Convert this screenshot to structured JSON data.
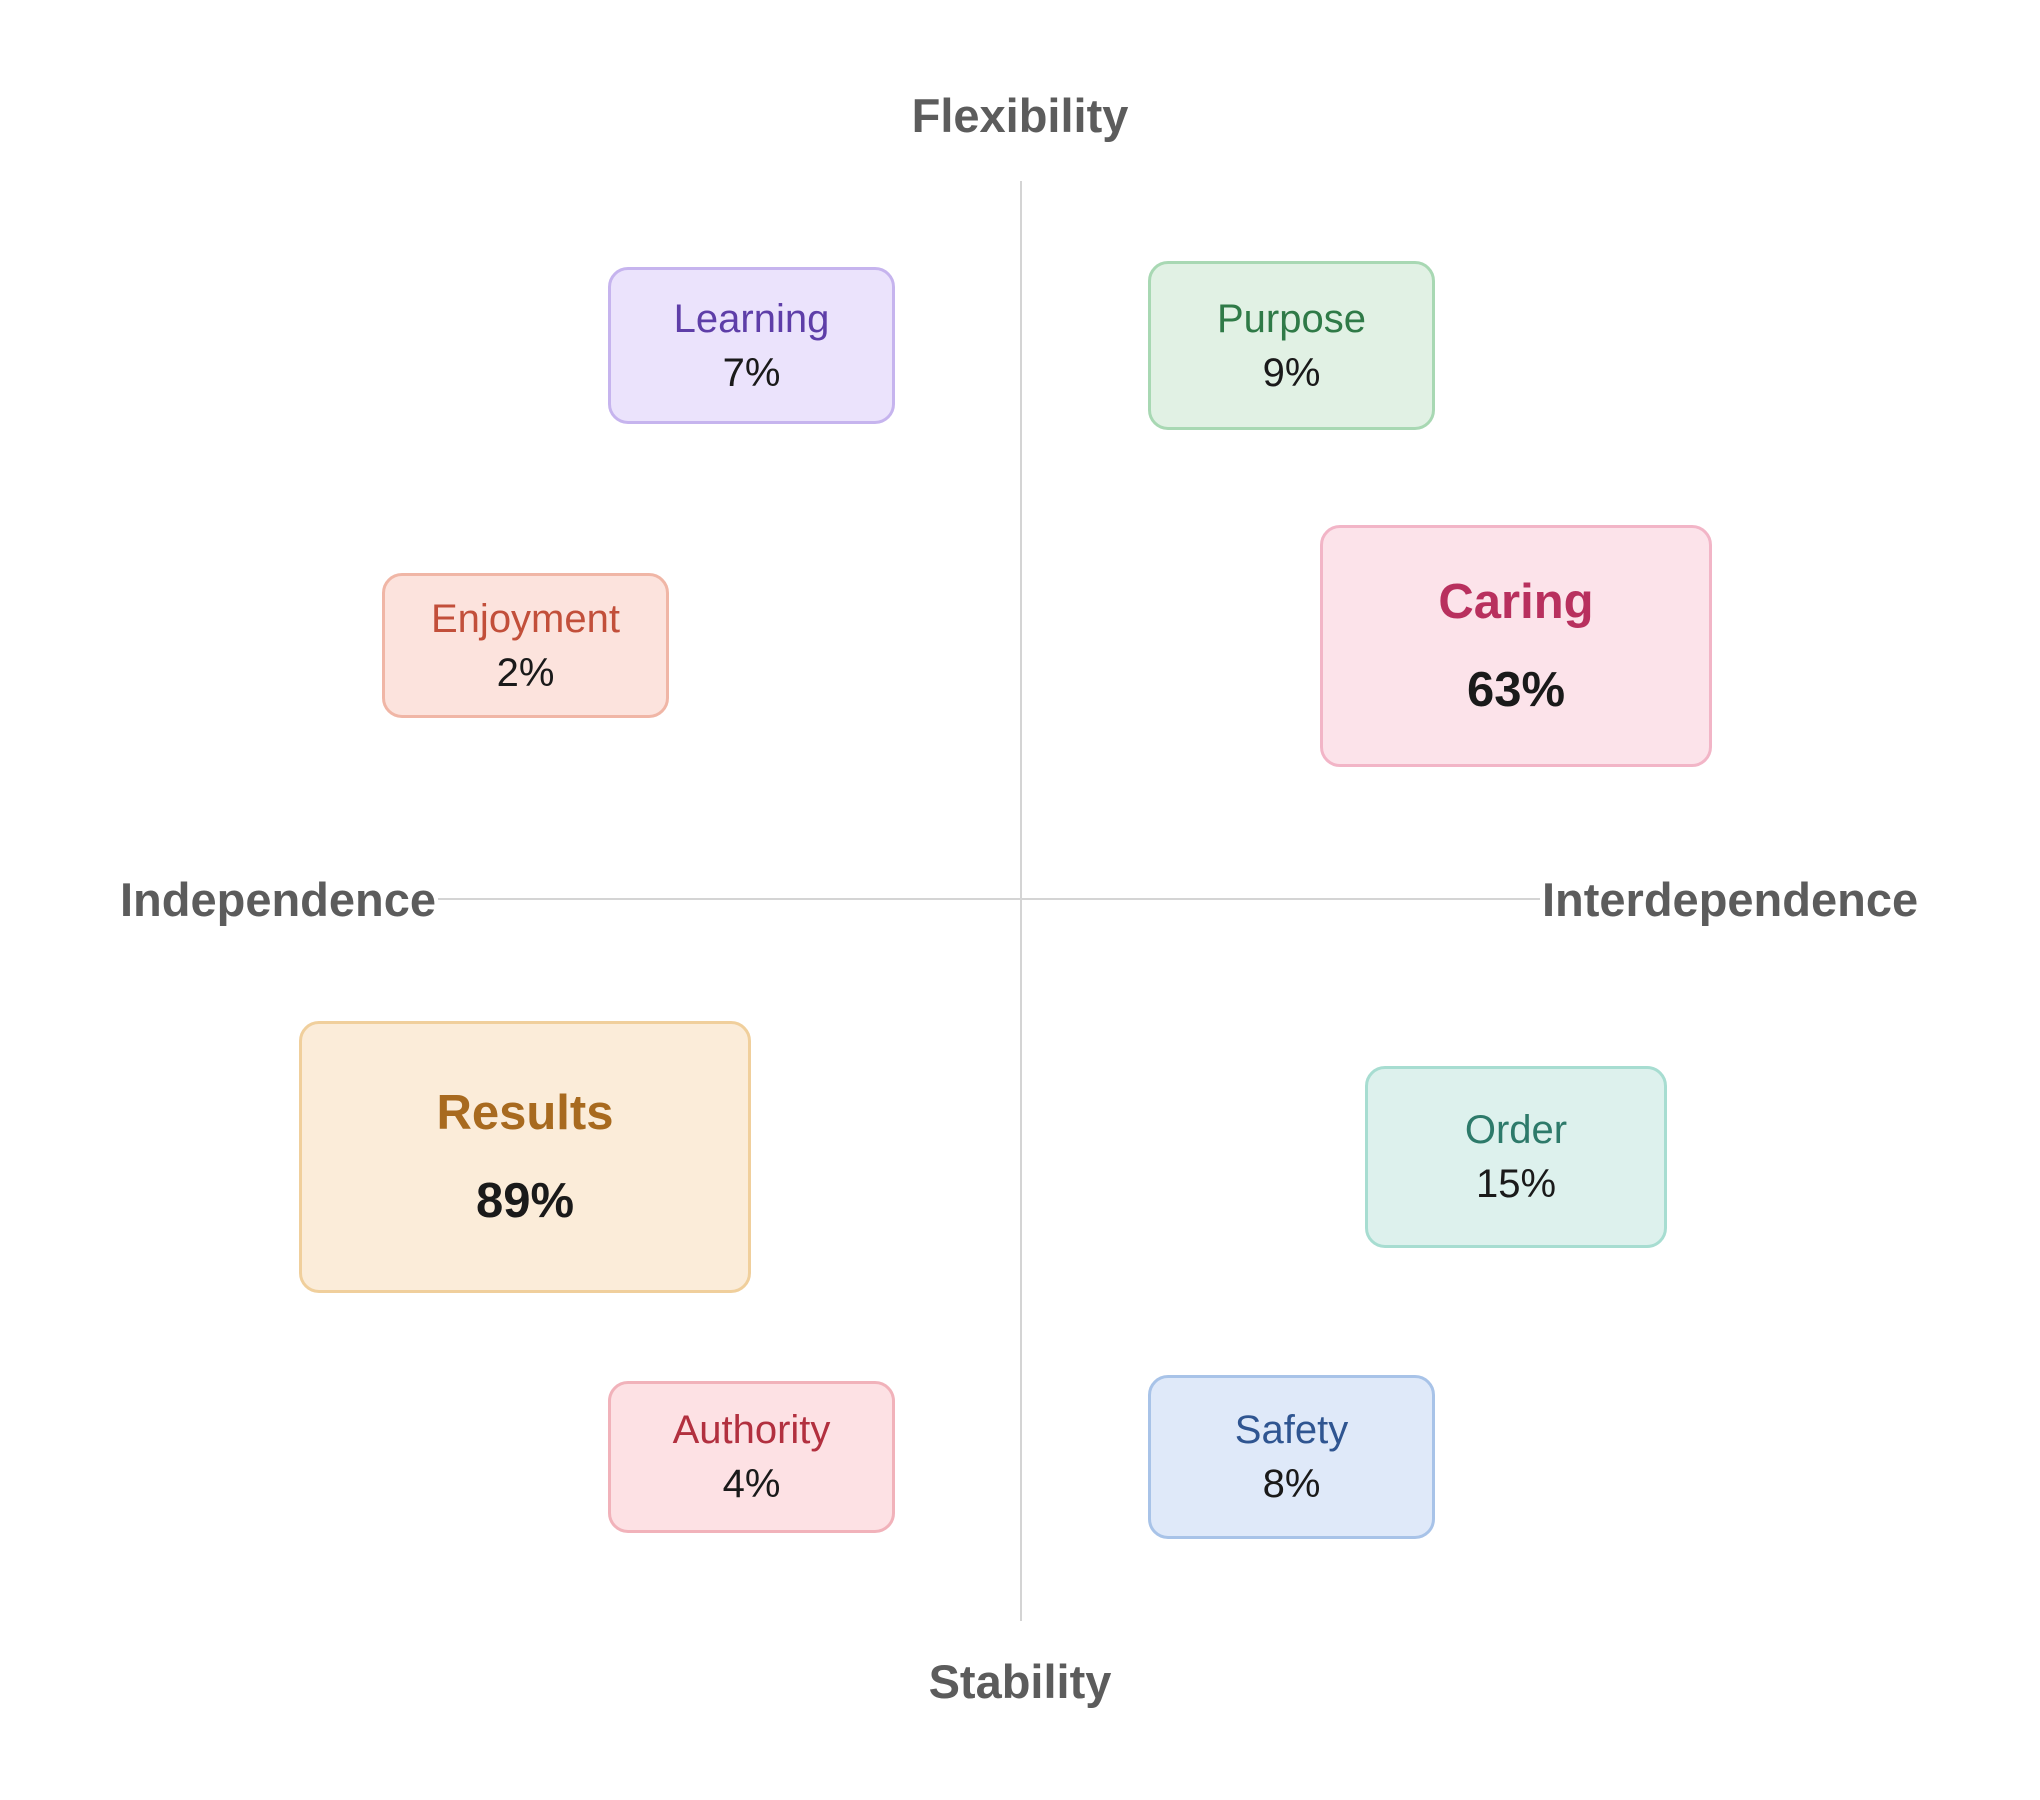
{
  "axes": {
    "top": "Flexibility",
    "bottom": "Stability",
    "left": "Independence",
    "right": "Interdependence"
  },
  "cards": {
    "learning": {
      "name": "Learning",
      "value": "7%",
      "color": "#5e3ea8"
    },
    "purpose": {
      "name": "Purpose",
      "value": "9%",
      "color": "#2f7a47"
    },
    "enjoyment": {
      "name": "Enjoyment",
      "value": "2%",
      "color": "#c24f3a"
    },
    "caring": {
      "name": "Caring",
      "value": "63%",
      "color": "#b8305e"
    },
    "results": {
      "name": "Results",
      "value": "89%",
      "color": "#a86a1f"
    },
    "order": {
      "name": "Order",
      "value": "15%",
      "color": "#2d7a6a"
    },
    "authority": {
      "name": "Authority",
      "value": "4%",
      "color": "#b2303f"
    },
    "safety": {
      "name": "Safety",
      "value": "8%",
      "color": "#2f5591"
    }
  }
}
